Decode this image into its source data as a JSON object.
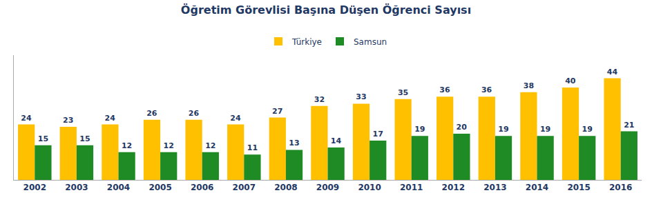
{
  "chart_data": {
    "type": "bar",
    "title": "Öğretim Görevlisi Başına Düşen Öğrenci Sayısı",
    "categories": [
      "2002",
      "2003",
      "2004",
      "2005",
      "2006",
      "2007",
      "2008",
      "2009",
      "2010",
      "2011",
      "2012",
      "2013",
      "2014",
      "2015",
      "2016"
    ],
    "series": [
      {
        "name": "Türkiye",
        "color": "#FFC000",
        "values": [
          24,
          23,
          24,
          26,
          26,
          24,
          27,
          32,
          33,
          35,
          36,
          36,
          38,
          40,
          44
        ]
      },
      {
        "name": "Samsun",
        "color": "#1E8B24",
        "values": [
          15,
          15,
          12,
          12,
          12,
          11,
          13,
          14,
          17,
          19,
          20,
          19,
          19,
          19,
          21
        ]
      }
    ],
    "ylim": [
      0,
      54
    ],
    "yticks": [],
    "grid": false,
    "legend": "top",
    "data_labels": true,
    "tick_labels": "x"
  }
}
